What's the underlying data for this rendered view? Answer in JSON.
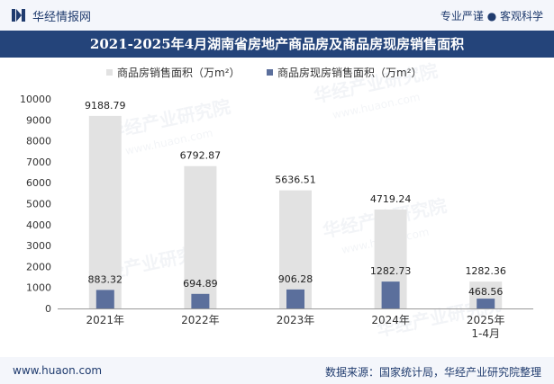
{
  "header": {
    "brand_name": "华经情报网",
    "slogan": "专业严谨 ● 客观科学"
  },
  "title": "2021-2025年4月湖南省房地产商品房及商品房现房销售面积",
  "footer": {
    "url": "www.huaon.com",
    "source": "数据来源：国家统计局，华经产业研究院整理"
  },
  "watermark": {
    "text": "华经产业研究院",
    "url": "www.huaon.com"
  },
  "colors": {
    "series1": "#e2e2e2",
    "series2": "#5b6f9c",
    "title_bg": "#24447a",
    "brand": "#1f3b6e"
  },
  "chart_data": {
    "type": "bar",
    "title": "2021-2025年4月湖南省房地产商品房及商品房现房销售面积",
    "categories": [
      "2021年",
      "2022年",
      "2023年",
      "2024年",
      "2025年\n1-4月"
    ],
    "series": [
      {
        "name": "商品房销售面积（万m²）",
        "values": [
          9188.79,
          6792.87,
          5636.51,
          4719.24,
          1282.36
        ],
        "labels": [
          "9188.79",
          "6792.87",
          "5636.51",
          "4719.24",
          "1282.36"
        ],
        "color": "#e2e2e2"
      },
      {
        "name": "商品房现房销售面积（万m²）",
        "values": [
          883.32,
          694.89,
          906.28,
          1282.73,
          468.56
        ],
        "labels": [
          "883.32",
          "694.89",
          "906.28",
          "1282.73",
          "468.56"
        ],
        "color": "#5b6f9c"
      }
    ],
    "ylim": [
      0,
      10000
    ],
    "yticks": [
      0,
      1000,
      2000,
      3000,
      4000,
      5000,
      6000,
      7000,
      8000,
      9000,
      10000
    ],
    "xlabel": "",
    "ylabel": "",
    "grid": false,
    "legend": "top-center"
  }
}
